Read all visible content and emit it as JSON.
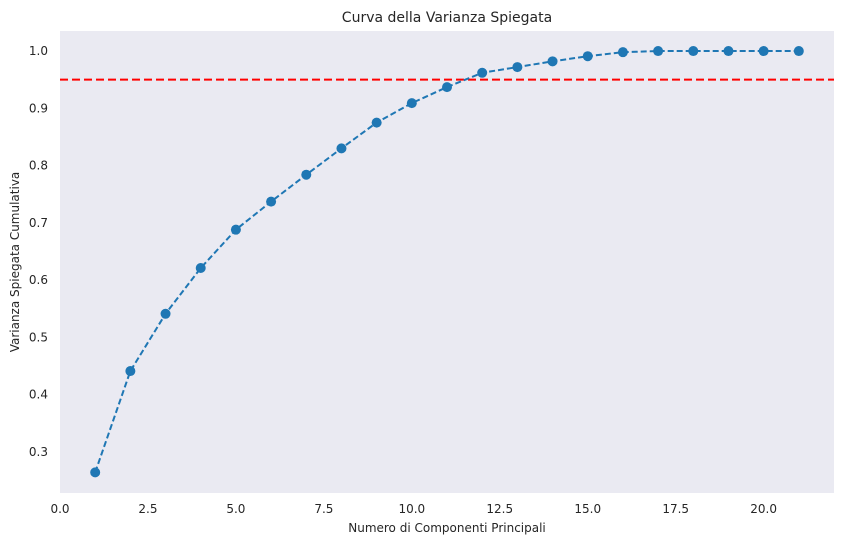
{
  "chart_data": {
    "type": "line",
    "title": "Curva della Varianza Spiegata",
    "xlabel": "Numero di Componenti Principali",
    "ylabel": "Varianza Spiegata Cumulativa",
    "xlim": [
      0,
      22.0
    ],
    "ylim": [
      0.228,
      1.035
    ],
    "x_ticks": [
      0.0,
      2.5,
      5.0,
      7.5,
      10.0,
      12.5,
      15.0,
      17.5,
      20.0
    ],
    "x_tick_labels": [
      "0.0",
      "2.5",
      "5.0",
      "7.5",
      "10.0",
      "12.5",
      "15.0",
      "17.5",
      "20.0"
    ],
    "y_ticks": [
      0.3,
      0.4,
      0.5,
      0.6,
      0.7,
      0.8,
      0.9,
      1.0
    ],
    "y_tick_labels": [
      "0.3",
      "0.4",
      "0.5",
      "0.6",
      "0.7",
      "0.8",
      "0.9",
      "1.0"
    ],
    "grid": false,
    "series": [
      {
        "x": [
          1,
          2,
          3,
          4,
          5,
          6,
          7,
          8,
          9,
          10,
          11,
          12,
          13,
          14,
          15,
          16,
          17,
          18,
          19,
          20,
          21
        ],
        "values": [
          0.264,
          0.441,
          0.541,
          0.621,
          0.688,
          0.737,
          0.784,
          0.83,
          0.875,
          0.909,
          0.937,
          0.962,
          0.972,
          0.982,
          0.991,
          0.998,
          1.0,
          1.0,
          1.0,
          1.0,
          1.0
        ],
        "color": "#1f77b4",
        "line_style": "dashed",
        "marker": "circle"
      }
    ],
    "reference_lines": [
      {
        "orientation": "horizontal",
        "y": 0.95,
        "color": "#ff0000",
        "line_style": "dashed"
      }
    ],
    "colors": {
      "plot_background": "#eaeaf2"
    }
  }
}
